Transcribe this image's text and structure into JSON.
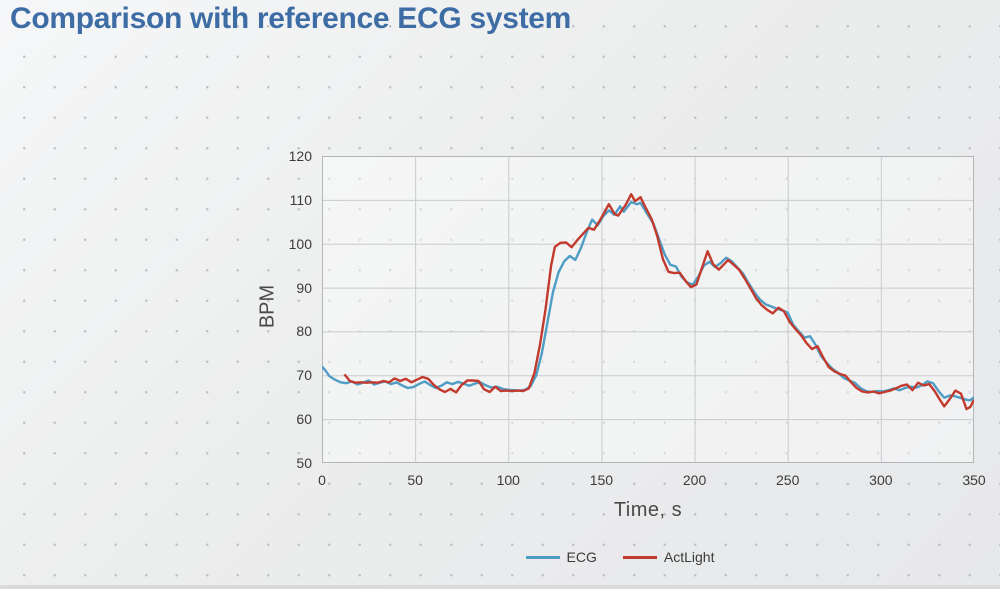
{
  "slide": {
    "title": "Comparison with reference ECG system",
    "title_color": "#3e6da6",
    "background_color": "#ebecee"
  },
  "chart_data": {
    "type": "line",
    "title": "",
    "xlabel": "Time, s",
    "ylabel": "BPM",
    "xlim": [
      0,
      350
    ],
    "ylim": [
      50,
      120
    ],
    "x_ticks": [
      0,
      50,
      100,
      150,
      200,
      250,
      300,
      350
    ],
    "y_ticks": [
      50,
      60,
      70,
      80,
      90,
      100,
      110,
      120
    ],
    "grid": true,
    "grid_color": "#c9cbce",
    "border_color": "#b3b5b8",
    "legend_position": "bottom",
    "series": [
      {
        "name": "ECG",
        "color": "#4f9dc4",
        "points": [
          [
            0,
            72
          ],
          [
            2,
            71
          ],
          [
            4,
            69.8
          ],
          [
            7,
            69
          ],
          [
            10,
            68.4
          ],
          [
            13,
            68.2
          ],
          [
            16,
            68.6
          ],
          [
            19,
            67.9
          ],
          [
            22,
            68.3
          ],
          [
            25,
            68.8
          ],
          [
            28,
            67.9
          ],
          [
            31,
            68.3
          ],
          [
            34,
            68.6
          ],
          [
            37,
            68
          ],
          [
            40,
            68.4
          ],
          [
            43,
            67.7
          ],
          [
            46,
            67.1
          ],
          [
            49,
            67.3
          ],
          [
            52,
            68
          ],
          [
            55,
            68.6
          ],
          [
            58,
            67.8
          ],
          [
            61,
            67.1
          ],
          [
            64,
            67.6
          ],
          [
            67,
            68.4
          ],
          [
            70,
            68
          ],
          [
            73,
            68.5
          ],
          [
            76,
            68.1
          ],
          [
            79,
            67.6
          ],
          [
            82,
            68.1
          ],
          [
            85,
            68.4
          ],
          [
            88,
            67.7
          ],
          [
            91,
            67.2
          ],
          [
            94,
            67.4
          ],
          [
            97,
            66.9
          ],
          [
            100,
            66.7
          ],
          [
            103,
            66.6
          ],
          [
            106,
            66.5
          ],
          [
            109,
            66.7
          ],
          [
            112,
            67.5
          ],
          [
            115,
            70
          ],
          [
            118,
            75
          ],
          [
            121,
            82
          ],
          [
            124,
            89
          ],
          [
            127,
            93.5
          ],
          [
            130,
            96
          ],
          [
            133,
            97.2
          ],
          [
            136,
            96.3
          ],
          [
            139,
            99
          ],
          [
            142,
            102.5
          ],
          [
            145,
            105.5
          ],
          [
            148,
            104.2
          ],
          [
            151,
            106.3
          ],
          [
            154,
            107.6
          ],
          [
            157,
            106.6
          ],
          [
            160,
            108.5
          ],
          [
            162,
            107.3
          ],
          [
            166,
            109.5
          ],
          [
            169,
            109
          ],
          [
            171,
            109.3
          ],
          [
            174,
            107.2
          ],
          [
            178,
            104.5
          ],
          [
            181,
            101
          ],
          [
            184,
            97.5
          ],
          [
            187,
            95.2
          ],
          [
            190,
            94.8
          ],
          [
            193,
            92.5
          ],
          [
            196,
            91.2
          ],
          [
            199,
            90.6
          ],
          [
            202,
            92.5
          ],
          [
            205,
            95
          ],
          [
            208,
            95.9
          ],
          [
            211,
            94.7
          ],
          [
            214,
            95.6
          ],
          [
            217,
            96.8
          ],
          [
            220,
            96
          ],
          [
            223,
            94.6
          ],
          [
            226,
            93.2
          ],
          [
            229,
            91
          ],
          [
            232,
            89
          ],
          [
            235,
            87.3
          ],
          [
            238,
            86.2
          ],
          [
            241,
            85.7
          ],
          [
            244,
            85.2
          ],
          [
            247,
            84.8
          ],
          [
            250,
            84.3
          ],
          [
            253,
            81.5
          ],
          [
            256,
            80
          ],
          [
            259,
            78.6
          ],
          [
            262,
            78.9
          ],
          [
            265,
            76.9
          ],
          [
            268,
            74.3
          ],
          [
            271,
            72.8
          ],
          [
            274,
            71.5
          ],
          [
            277,
            70.6
          ],
          [
            280,
            69.4
          ],
          [
            283,
            68.8
          ],
          [
            286,
            68.3
          ],
          [
            289,
            67.1
          ],
          [
            292,
            66.4
          ],
          [
            295,
            66.2
          ],
          [
            298,
            66.4
          ],
          [
            301,
            66.3
          ],
          [
            304,
            66.6
          ],
          [
            307,
            67
          ],
          [
            310,
            66.6
          ],
          [
            313,
            67.1
          ],
          [
            316,
            67.4
          ],
          [
            319,
            67.2
          ],
          [
            322,
            67.7
          ],
          [
            325,
            68.6
          ],
          [
            328,
            68.2
          ],
          [
            331,
            66.4
          ],
          [
            334,
            64.9
          ],
          [
            337,
            65.4
          ],
          [
            340,
            65.2
          ],
          [
            343,
            64.8
          ],
          [
            346,
            64.4
          ],
          [
            348,
            64.3
          ],
          [
            350,
            65
          ]
        ]
      },
      {
        "name": "ActLight",
        "color": "#c23a2d",
        "points": [
          [
            12,
            70.2
          ],
          [
            15,
            68.7
          ],
          [
            18,
            68.3
          ],
          [
            21,
            68.4
          ],
          [
            24,
            68.3
          ],
          [
            27,
            68.4
          ],
          [
            30,
            68.3
          ],
          [
            33,
            68.7
          ],
          [
            36,
            68.4
          ],
          [
            39,
            69.3
          ],
          [
            42,
            68.7
          ],
          [
            45,
            69.2
          ],
          [
            48,
            68.4
          ],
          [
            51,
            69
          ],
          [
            54,
            69.6
          ],
          [
            57,
            69.2
          ],
          [
            60,
            67.8
          ],
          [
            63,
            66.8
          ],
          [
            66,
            66.2
          ],
          [
            69,
            66.9
          ],
          [
            72,
            66.1
          ],
          [
            75,
            67.8
          ],
          [
            78,
            68.8
          ],
          [
            81,
            68.8
          ],
          [
            84,
            68.7
          ],
          [
            87,
            66.8
          ],
          [
            90,
            66.2
          ],
          [
            93,
            67.4
          ],
          [
            96,
            66.4
          ],
          [
            99,
            66.5
          ],
          [
            102,
            66.4
          ],
          [
            105,
            66.5
          ],
          [
            108,
            66.4
          ],
          [
            111,
            67
          ],
          [
            114,
            70.5
          ],
          [
            117,
            77
          ],
          [
            120,
            85
          ],
          [
            123,
            95
          ],
          [
            125,
            99.3
          ],
          [
            128,
            100.2
          ],
          [
            131,
            100.3
          ],
          [
            134,
            99.2
          ],
          [
            137,
            100.8
          ],
          [
            140,
            102.2
          ],
          [
            143,
            103.6
          ],
          [
            146,
            103.2
          ],
          [
            149,
            105.2
          ],
          [
            152,
            107.5
          ],
          [
            154,
            109
          ],
          [
            157,
            106.8
          ],
          [
            159,
            106.4
          ],
          [
            163,
            108.8
          ],
          [
            166,
            111.3
          ],
          [
            168,
            109.7
          ],
          [
            171,
            110.6
          ],
          [
            174,
            108
          ],
          [
            177,
            105.6
          ],
          [
            180,
            101.7
          ],
          [
            183,
            96.5
          ],
          [
            186,
            93.6
          ],
          [
            189,
            93.3
          ],
          [
            192,
            93.4
          ],
          [
            195,
            91.6
          ],
          [
            198,
            90.1
          ],
          [
            201,
            90.7
          ],
          [
            204,
            94.5
          ],
          [
            207,
            98.3
          ],
          [
            210,
            95.3
          ],
          [
            213,
            94.1
          ],
          [
            216,
            95.4
          ],
          [
            218,
            96.3
          ],
          [
            221,
            95.2
          ],
          [
            224,
            94
          ],
          [
            227,
            92
          ],
          [
            230,
            89.8
          ],
          [
            233,
            87.6
          ],
          [
            236,
            86
          ],
          [
            239,
            84.9
          ],
          [
            242,
            84.1
          ],
          [
            245,
            85.4
          ],
          [
            248,
            84.6
          ],
          [
            251,
            82.2
          ],
          [
            254,
            80.6
          ],
          [
            257,
            79.2
          ],
          [
            260,
            77.4
          ],
          [
            263,
            76
          ],
          [
            266,
            76.6
          ],
          [
            269,
            74.1
          ],
          [
            272,
            71.9
          ],
          [
            275,
            70.9
          ],
          [
            278,
            70.3
          ],
          [
            281,
            69.9
          ],
          [
            284,
            68.4
          ],
          [
            287,
            67.1
          ],
          [
            290,
            66.3
          ],
          [
            293,
            66.1
          ],
          [
            296,
            66.3
          ],
          [
            299,
            65.9
          ],
          [
            302,
            66.2
          ],
          [
            305,
            66.5
          ],
          [
            308,
            67
          ],
          [
            311,
            67.6
          ],
          [
            314,
            67.9
          ],
          [
            317,
            66.6
          ],
          [
            320,
            68.3
          ],
          [
            323,
            67.7
          ],
          [
            326,
            68
          ],
          [
            329,
            66.3
          ],
          [
            332,
            64.2
          ],
          [
            334,
            62.9
          ],
          [
            337,
            64.6
          ],
          [
            340,
            66.5
          ],
          [
            343,
            65.8
          ],
          [
            346,
            62.3
          ],
          [
            348,
            62.8
          ],
          [
            350,
            64.4
          ]
        ]
      }
    ]
  }
}
